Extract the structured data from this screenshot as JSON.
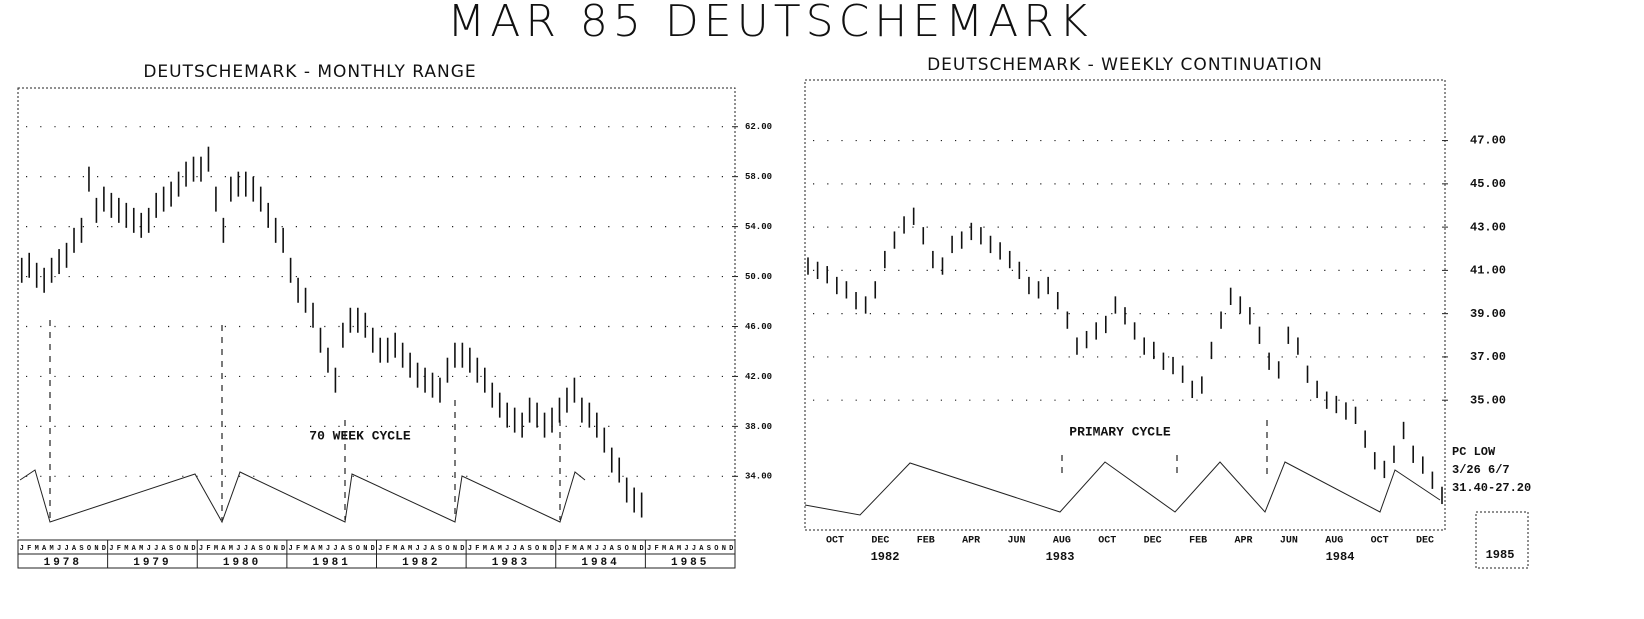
{
  "title": "MAR 85 DEUTSCHEMARK",
  "chart_data": [
    {
      "type": "range",
      "title": "DEUTSCHEMARK - MONTHLY RANGE",
      "color": "#111111",
      "grid": true,
      "categories": [
        "J",
        "F",
        "M",
        "A",
        "M",
        "J",
        "J",
        "A",
        "S",
        "O",
        "N",
        "D",
        "J",
        "F",
        "M",
        "A",
        "M",
        "J",
        "J",
        "A",
        "S",
        "O",
        "N",
        "D",
        "J",
        "F",
        "M",
        "A",
        "M",
        "J",
        "J",
        "A",
        "S",
        "O",
        "N",
        "D",
        "J",
        "F",
        "M",
        "A",
        "M",
        "J",
        "J",
        "A",
        "S",
        "O",
        "N",
        "D",
        "J",
        "F",
        "M",
        "A",
        "M",
        "J",
        "J",
        "A",
        "S",
        "O",
        "N",
        "D",
        "J",
        "F",
        "M",
        "A",
        "M",
        "J",
        "J",
        "A",
        "S",
        "O",
        "N",
        "D",
        "J",
        "F",
        "M",
        "A",
        "M",
        "J",
        "J",
        "A",
        "S",
        "O",
        "N",
        "D",
        "J",
        "F",
        "M",
        "A",
        "M",
        "J",
        "J",
        "A",
        "S",
        "O",
        "N",
        "D"
      ],
      "year_labels": [
        "1978",
        "1979",
        "1980",
        "1981",
        "1982",
        "1983",
        "1984",
        "1985"
      ],
      "high": [
        51.5,
        51.9,
        51.1,
        50.7,
        51.5,
        52.2,
        52.7,
        53.9,
        54.7,
        58.8,
        56.3,
        57.2,
        56.7,
        56.3,
        55.9,
        55.5,
        55.1,
        55.5,
        56.7,
        57.2,
        57.6,
        58.4,
        59.2,
        59.6,
        59.6,
        60.4,
        57.2,
        54.7,
        58.0,
        58.4,
        58.4,
        58.0,
        57.2,
        55.9,
        54.7,
        53.9,
        51.5,
        49.9,
        49.1,
        47.9,
        45.9,
        44.3,
        42.7,
        46.3,
        47.5,
        47.5,
        47.1,
        45.9,
        45.1,
        45.1,
        45.5,
        44.7,
        43.9,
        43.1,
        42.7,
        42.3,
        41.9,
        43.5,
        44.7,
        44.7,
        44.3,
        43.5,
        42.7,
        41.5,
        40.7,
        39.9,
        39.5,
        39.1,
        40.3,
        39.9,
        39.1,
        39.5,
        40.3,
        41.1,
        41.9,
        40.3,
        39.9,
        39.1,
        37.9,
        36.3,
        35.5,
        33.9,
        33.1,
        32.7,
        null,
        null,
        null,
        null,
        null,
        null,
        null,
        null,
        null,
        null,
        null,
        null
      ],
      "low": [
        49.5,
        49.9,
        49.1,
        48.7,
        49.5,
        50.2,
        50.7,
        51.9,
        52.7,
        56.8,
        54.3,
        55.2,
        54.7,
        54.3,
        53.9,
        53.5,
        53.1,
        53.5,
        54.7,
        55.2,
        55.6,
        56.4,
        57.2,
        57.6,
        57.6,
        58.4,
        55.2,
        52.7,
        56.0,
        56.4,
        56.4,
        56.0,
        55.2,
        53.9,
        52.7,
        51.9,
        49.5,
        47.9,
        47.1,
        45.9,
        43.9,
        42.3,
        40.7,
        44.3,
        45.5,
        45.5,
        45.1,
        43.9,
        43.1,
        43.1,
        43.5,
        42.7,
        41.9,
        41.1,
        40.7,
        40.3,
        39.9,
        41.5,
        42.7,
        42.7,
        42.3,
        41.5,
        40.7,
        39.5,
        38.7,
        37.9,
        37.5,
        37.1,
        38.3,
        37.9,
        37.1,
        37.5,
        38.3,
        39.1,
        39.9,
        38.3,
        37.9,
        37.1,
        35.9,
        34.3,
        33.5,
        31.9,
        31.1,
        30.7,
        null,
        null,
        null,
        null,
        null,
        null,
        null,
        null,
        null,
        null,
        null,
        null
      ],
      "ylim": [
        28.9,
        65.1
      ],
      "yticks": [
        {
          "value": 34,
          "label": "34.00"
        },
        {
          "value": 38,
          "label": "38.00"
        },
        {
          "value": 42,
          "label": "42.00"
        },
        {
          "value": 46,
          "label": "46.00"
        },
        {
          "value": 50,
          "label": "50.00"
        },
        {
          "value": 54,
          "label": "54.00"
        },
        {
          "value": 58,
          "label": "58.00"
        },
        {
          "value": 62,
          "label": "62.00"
        }
      ],
      "annotations": [
        "70 WEEK CYCLE"
      ]
    },
    {
      "type": "range",
      "title": "DEUTSCHEMARK - WEEKLY CONTINUATION",
      "color": "#111111",
      "grid": true,
      "month_labels": [
        "OCT",
        "DEC",
        "FEB",
        "APR",
        "JUN",
        "AUG",
        "OCT",
        "DEC",
        "FEB",
        "APR",
        "JUN",
        "AUG",
        "OCT",
        "DEC"
      ],
      "year_labels": [
        "1982",
        "1983",
        "1984"
      ],
      "year_box": "1985",
      "high": [
        41.6,
        41.4,
        41.2,
        40.7,
        40.5,
        40.0,
        39.8,
        40.5,
        41.9,
        42.8,
        43.5,
        43.9,
        43.0,
        41.9,
        41.6,
        42.6,
        42.8,
        43.2,
        43.0,
        42.6,
        42.3,
        41.9,
        41.4,
        40.7,
        40.5,
        40.7,
        40.0,
        39.1,
        37.9,
        38.2,
        38.6,
        38.9,
        39.8,
        39.3,
        38.6,
        37.9,
        37.7,
        37.2,
        37.0,
        36.6,
        35.9,
        36.1,
        37.7,
        39.1,
        40.2,
        39.8,
        39.3,
        38.4,
        37.2,
        36.8,
        38.4,
        37.9,
        36.6,
        35.9,
        35.4,
        35.2,
        34.9,
        34.7,
        33.6,
        32.6,
        32.2,
        32.9,
        34.0,
        32.9,
        32.4,
        31.7,
        31.0
      ],
      "low": [
        40.8,
        40.6,
        40.4,
        39.9,
        39.7,
        39.2,
        39.0,
        39.7,
        41.1,
        42.0,
        42.7,
        43.1,
        42.2,
        41.1,
        40.8,
        41.8,
        42.0,
        42.4,
        42.2,
        41.8,
        41.5,
        41.1,
        40.6,
        39.9,
        39.7,
        39.9,
        39.2,
        38.3,
        37.1,
        37.4,
        37.8,
        38.1,
        39.0,
        38.5,
        37.8,
        37.1,
        36.9,
        36.4,
        36.2,
        35.8,
        35.1,
        35.3,
        36.9,
        38.3,
        39.4,
        39.0,
        38.5,
        37.6,
        36.4,
        36.0,
        37.6,
        37.1,
        35.8,
        35.1,
        34.6,
        34.4,
        34.1,
        33.9,
        32.8,
        31.8,
        31.4,
        32.1,
        33.2,
        32.1,
        31.6,
        30.9,
        30.2
      ],
      "ylim": [
        29,
        49.8
      ],
      "yticks": [
        {
          "value": 35,
          "label": "35.00"
        },
        {
          "value": 37,
          "label": "37.00"
        },
        {
          "value": 39,
          "label": "39.00"
        },
        {
          "value": 41,
          "label": "41.00"
        },
        {
          "value": 43,
          "label": "43.00"
        },
        {
          "value": 45,
          "label": "45.00"
        },
        {
          "value": 47,
          "label": "47.00"
        }
      ],
      "annotations": [
        "PRIMARY CYCLE",
        "PC LOW",
        "3/26  6/7",
        "31.40-27.20"
      ]
    }
  ]
}
